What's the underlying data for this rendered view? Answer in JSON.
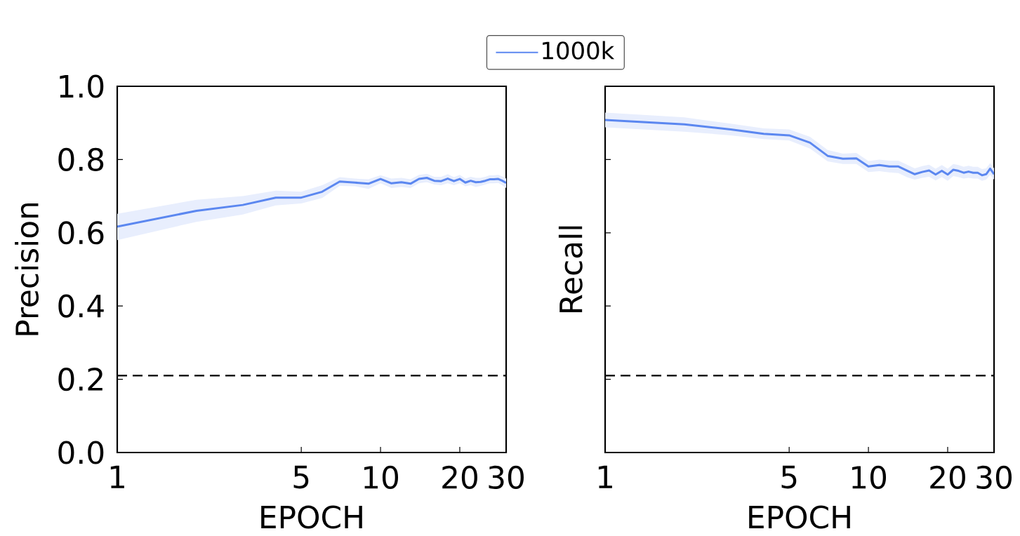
{
  "chart_data": [
    {
      "type": "line",
      "xlabel": "EPOCH",
      "ylabel": "Precision",
      "log": "x",
      "legend": "top",
      "x": [
        1,
        2,
        3,
        4,
        5,
        6,
        7,
        8,
        9,
        10,
        11,
        12,
        13,
        14,
        15,
        16,
        17,
        18,
        19,
        20,
        21,
        22,
        23,
        24,
        25,
        26,
        27,
        28,
        29,
        30
      ],
      "series": [
        {
          "name": "1000k",
          "color": "#5b87f0",
          "values": [
            0.617,
            0.66,
            0.676,
            0.696,
            0.696,
            0.712,
            0.74,
            0.737,
            0.734,
            0.747,
            0.735,
            0.738,
            0.734,
            0.747,
            0.75,
            0.742,
            0.741,
            0.748,
            0.741,
            0.747,
            0.737,
            0.742,
            0.738,
            0.739,
            0.742,
            0.746,
            0.746,
            0.747,
            0.742,
            0.736
          ],
          "lower": [
            0.58,
            0.63,
            0.65,
            0.675,
            0.68,
            0.695,
            0.728,
            0.727,
            0.72,
            0.735,
            0.722,
            0.725,
            0.722,
            0.735,
            0.738,
            0.732,
            0.73,
            0.735,
            0.73,
            0.735,
            0.727,
            0.73,
            0.725,
            0.728,
            0.732,
            0.735,
            0.735,
            0.736,
            0.73,
            0.722
          ],
          "upper": [
            0.652,
            0.69,
            0.7,
            0.715,
            0.712,
            0.73,
            0.752,
            0.748,
            0.746,
            0.757,
            0.748,
            0.75,
            0.746,
            0.758,
            0.761,
            0.753,
            0.753,
            0.76,
            0.752,
            0.758,
            0.748,
            0.753,
            0.75,
            0.75,
            0.753,
            0.757,
            0.757,
            0.758,
            0.754,
            0.748
          ]
        }
      ],
      "xlim": [
        1,
        30
      ],
      "xticks": [
        1,
        5,
        10,
        20,
        30
      ],
      "ylim": [
        0,
        1
      ],
      "yticks": [
        {
          "value": 0,
          "label": "0.0"
        },
        0.2,
        0.4,
        0.6,
        0.8,
        {
          "value": 1,
          "label": "1.0"
        }
      ],
      "ref_lines": [
        {
          "axis": "y",
          "value": 0.21,
          "color": "#000000",
          "line_style": "dashed"
        }
      ]
    },
    {
      "type": "line",
      "xlabel": "EPOCH",
      "ylabel": "Recall",
      "log": "x",
      "tick_labels": "x",
      "x": [
        1,
        2,
        3,
        4,
        5,
        6,
        7,
        8,
        9,
        10,
        11,
        12,
        13,
        14,
        15,
        16,
        17,
        18,
        19,
        20,
        21,
        22,
        23,
        24,
        25,
        26,
        27,
        28,
        29,
        30
      ],
      "series": [
        {
          "color": "#5b87f0",
          "values": [
            0.908,
            0.896,
            0.882,
            0.87,
            0.866,
            0.846,
            0.81,
            0.802,
            0.803,
            0.781,
            0.785,
            0.781,
            0.781,
            0.77,
            0.76,
            0.766,
            0.77,
            0.759,
            0.769,
            0.759,
            0.772,
            0.769,
            0.764,
            0.767,
            0.764,
            0.764,
            0.757,
            0.76,
            0.775,
            0.76
          ],
          "lower": [
            0.888,
            0.876,
            0.866,
            0.856,
            0.852,
            0.83,
            0.795,
            0.788,
            0.788,
            0.766,
            0.768,
            0.765,
            0.763,
            0.752,
            0.745,
            0.75,
            0.753,
            0.743,
            0.752,
            0.742,
            0.755,
            0.752,
            0.748,
            0.75,
            0.748,
            0.748,
            0.742,
            0.745,
            0.758,
            0.745
          ],
          "upper": [
            0.928,
            0.915,
            0.898,
            0.885,
            0.882,
            0.862,
            0.826,
            0.816,
            0.818,
            0.796,
            0.8,
            0.797,
            0.797,
            0.786,
            0.776,
            0.782,
            0.786,
            0.775,
            0.785,
            0.775,
            0.788,
            0.785,
            0.78,
            0.783,
            0.78,
            0.78,
            0.774,
            0.776,
            0.79,
            0.776
          ]
        }
      ],
      "xlim": [
        1,
        30
      ],
      "xticks": [
        1,
        5,
        10,
        20,
        30
      ],
      "ylim": [
        0,
        1
      ],
      "yticks": [
        0.0,
        0.2,
        0.4,
        0.6,
        0.8,
        1.0
      ],
      "ref_lines": [
        {
          "axis": "y",
          "value": 0.21,
          "color": "#000000",
          "line_style": "dashed"
        }
      ]
    }
  ]
}
